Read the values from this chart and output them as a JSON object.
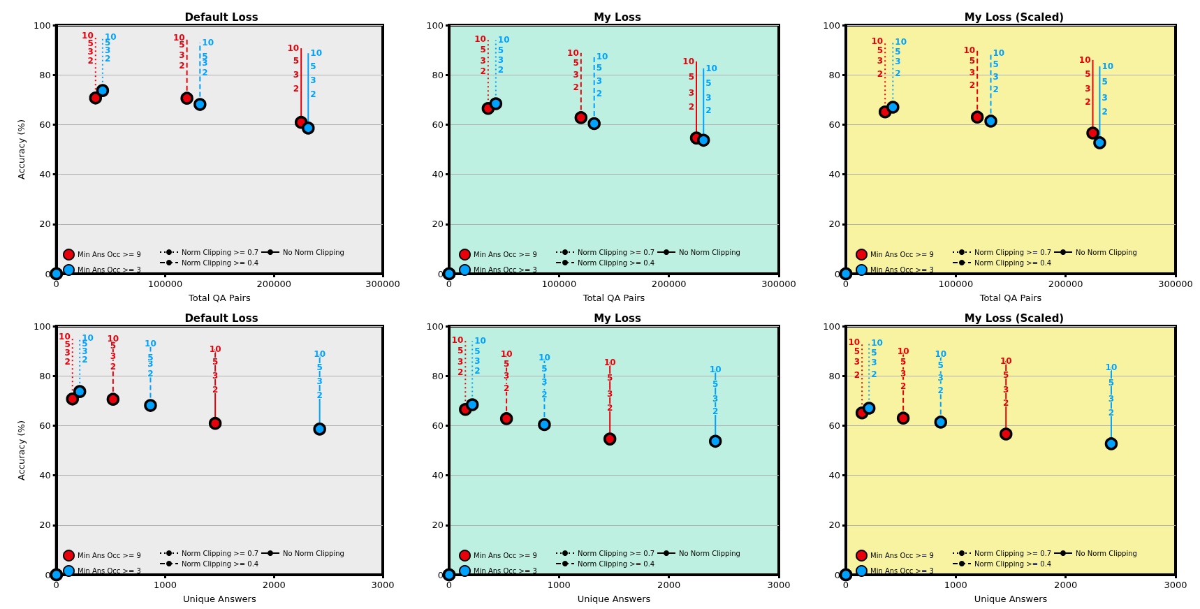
{
  "chart_data": [
    {
      "type": "scatter",
      "title": "Default Loss",
      "xlabel": "Total QA Pairs",
      "ylabel": "Accuracy (%)",
      "xlim": [
        0,
        300000
      ],
      "xticks": [
        0,
        100000,
        200000,
        300000
      ],
      "ylim": [
        0,
        100
      ],
      "yticks": [
        0,
        20,
        40,
        60,
        80,
        100
      ],
      "grid": "y",
      "legend": "bottom",
      "marker": "circle",
      "series": [
        {
          "type": "line",
          "marker": "none",
          "color": "#e8000b",
          "line_style": "dotted",
          "x": [
            36000,
            36000,
            36000,
            36000,
            36000
          ],
          "values": [
            70.7,
            85.6,
            89.3,
            92.6,
            95.8
          ]
        },
        {
          "type": "line",
          "marker": "none",
          "color": "#00a2ff",
          "line_style": "dotted",
          "x": [
            42500,
            42500,
            42500,
            42500,
            42500
          ],
          "values": [
            73.7,
            86.5,
            89.8,
            93,
            95.3
          ]
        },
        {
          "type": "line",
          "marker": "none",
          "color": "#e8000b",
          "line_style": "dashed",
          "x": [
            120000,
            120000,
            120000,
            120000,
            120000
          ],
          "values": [
            70.6,
            83.7,
            87.9,
            92.1,
            94.9
          ]
        },
        {
          "type": "line",
          "marker": "none",
          "color": "#00a2ff",
          "line_style": "dashed",
          "x": [
            132000,
            132000,
            132000,
            132000,
            132000
          ],
          "values": [
            68.1,
            80.9,
            84.7,
            87.4,
            93
          ]
        },
        {
          "type": "line",
          "marker": "none",
          "color": "#e8000b",
          "line_style": "solid",
          "x": [
            225000,
            225000,
            225000,
            225000,
            225000
          ],
          "values": [
            60.9,
            74.4,
            80,
            85.6,
            90.7
          ]
        },
        {
          "type": "line",
          "marker": "none",
          "color": "#00a2ff",
          "line_style": "solid",
          "x": [
            231500,
            231500,
            231500,
            231500,
            231500
          ],
          "values": [
            58.6,
            72.1,
            77.7,
            83.4,
            88.7
          ]
        },
        {
          "name": "Min Ans Occ >= 9",
          "color": "#e8000b",
          "x": [
            0,
            36000,
            120000,
            225000
          ],
          "values": [
            0,
            70.7,
            70.6,
            60.9
          ]
        },
        {
          "name": "Min Ans Occ >= 3",
          "color": "#00a2ff",
          "x": [
            0,
            42500,
            132000,
            231500
          ],
          "values": [
            0,
            73.7,
            68.1,
            58.6
          ]
        },
        {
          "name": "Norm Clipping >= 0.7",
          "type": "line",
          "marker": "none",
          "color": "#000000",
          "line_style": "dotted"
        },
        {
          "name": "Norm Clipping >= 0.4",
          "type": "line",
          "marker": "none",
          "color": "#000000",
          "line_style": "dashed"
        },
        {
          "name": "No Norm Clipping",
          "type": "line",
          "marker": "none",
          "color": "#000000",
          "line_style": "solid"
        }
      ],
      "annotations": [
        {
          "text": "2",
          "x": 36000,
          "y": 85.6
        },
        {
          "text": "3",
          "x": 36000,
          "y": 89.3
        },
        {
          "text": "5",
          "x": 36000,
          "y": 92.6
        },
        {
          "text": "10",
          "x": 36000,
          "y": 95.8
        },
        {
          "text": "2",
          "x": 42500,
          "y": 86.5
        },
        {
          "text": "3",
          "x": 42500,
          "y": 89.8
        },
        {
          "text": "5",
          "x": 42500,
          "y": 93
        },
        {
          "text": "10",
          "x": 42500,
          "y": 95.3
        },
        {
          "text": "2",
          "x": 120000,
          "y": 83.7
        },
        {
          "text": "3",
          "x": 120000,
          "y": 87.9
        },
        {
          "text": "5",
          "x": 120000,
          "y": 92.1
        },
        {
          "text": "10",
          "x": 120000,
          "y": 94.9
        },
        {
          "text": "2",
          "x": 132000,
          "y": 80.9
        },
        {
          "text": "3",
          "x": 132000,
          "y": 84.7
        },
        {
          "text": "5",
          "x": 132000,
          "y": 87.4
        },
        {
          "text": "10",
          "x": 132000,
          "y": 93
        },
        {
          "text": "2",
          "x": 225000,
          "y": 74.4
        },
        {
          "text": "3",
          "x": 225000,
          "y": 80
        },
        {
          "text": "5",
          "x": 225000,
          "y": 85.6
        },
        {
          "text": "10",
          "x": 225000,
          "y": 90.7
        },
        {
          "text": "2",
          "x": 231500,
          "y": 72.1
        },
        {
          "text": "3",
          "x": 231500,
          "y": 77.7
        },
        {
          "text": "5",
          "x": 231500,
          "y": 83.4
        },
        {
          "text": "10",
          "x": 231500,
          "y": 88.7
        }
      ]
    },
    {
      "type": "scatter",
      "title": "My Loss",
      "xlabel": "Total QA Pairs",
      "xlim": [
        0,
        300000
      ],
      "xticks": [
        0,
        100000,
        200000,
        300000
      ],
      "ylim": [
        0,
        100
      ],
      "yticks": [
        0,
        20,
        40,
        60,
        80,
        100
      ],
      "grid": "y",
      "legend": "bottom",
      "marker": "circle",
      "series": [
        {
          "type": "line",
          "marker": "none",
          "color": "#e8000b",
          "line_style": "dotted",
          "x": [
            35500,
            35500,
            35500,
            35500,
            35500
          ],
          "values": [
            66.5,
            81.4,
            85.6,
            90.2,
            94.4
          ]
        },
        {
          "type": "line",
          "marker": "none",
          "color": "#00a2ff",
          "line_style": "dotted",
          "x": [
            42500,
            42500,
            42500,
            42500,
            42500
          ],
          "values": [
            68.4,
            82,
            86,
            89.8,
            94
          ]
        },
        {
          "type": "line",
          "marker": "none",
          "color": "#e8000b",
          "line_style": "dashed",
          "x": [
            120000,
            120000,
            120000,
            120000,
            120000
          ],
          "values": [
            62.8,
            74.9,
            80,
            84.7,
            88.8
          ]
        },
        {
          "type": "line",
          "marker": "none",
          "color": "#00a2ff",
          "line_style": "dashed",
          "x": [
            132000,
            132000,
            132000,
            132000,
            132000
          ],
          "values": [
            60.4,
            72.6,
            77.5,
            82.8,
            87.4
          ]
        },
        {
          "type": "line",
          "marker": "none",
          "color": "#e8000b",
          "line_style": "solid",
          "x": [
            225000,
            225000,
            225000,
            225000,
            225000
          ],
          "values": [
            54.6,
            67,
            72.8,
            79.1,
            85.4
          ]
        },
        {
          "type": "line",
          "marker": "none",
          "color": "#00a2ff",
          "line_style": "solid",
          "x": [
            231500,
            231500,
            231500,
            231500,
            231500
          ],
          "values": [
            53.7,
            65.6,
            70.7,
            76.7,
            82.6
          ]
        },
        {
          "name": "Min Ans Occ >= 9",
          "color": "#e8000b",
          "x": [
            0,
            35500,
            120000,
            225000
          ],
          "values": [
            0,
            66.5,
            62.8,
            54.6
          ]
        },
        {
          "name": "Min Ans Occ >= 3",
          "color": "#00a2ff",
          "x": [
            0,
            42500,
            132000,
            231500
          ],
          "values": [
            0,
            68.4,
            60.4,
            53.7
          ]
        },
        {
          "name": "Norm Clipping >= 0.7",
          "type": "line",
          "marker": "none",
          "color": "#000000",
          "line_style": "dotted"
        },
        {
          "name": "Norm Clipping >= 0.4",
          "type": "line",
          "marker": "none",
          "color": "#000000",
          "line_style": "dashed"
        },
        {
          "name": "No Norm Clipping",
          "type": "line",
          "marker": "none",
          "color": "#000000",
          "line_style": "solid"
        }
      ],
      "annotations": [
        {
          "text": "2",
          "x": 35500,
          "y": 81.4
        },
        {
          "text": "3",
          "x": 35500,
          "y": 85.6
        },
        {
          "text": "5",
          "x": 35500,
          "y": 90.2
        },
        {
          "text": "10",
          "x": 35500,
          "y": 94.4
        },
        {
          "text": "2",
          "x": 42500,
          "y": 82
        },
        {
          "text": "3",
          "x": 42500,
          "y": 86
        },
        {
          "text": "5",
          "x": 42500,
          "y": 89.8
        },
        {
          "text": "10",
          "x": 42500,
          "y": 94
        },
        {
          "text": "2",
          "x": 120000,
          "y": 74.9
        },
        {
          "text": "3",
          "x": 120000,
          "y": 80
        },
        {
          "text": "5",
          "x": 120000,
          "y": 84.7
        },
        {
          "text": "10",
          "x": 120000,
          "y": 88.8
        },
        {
          "text": "2",
          "x": 132000,
          "y": 72.6
        },
        {
          "text": "3",
          "x": 132000,
          "y": 77.5
        },
        {
          "text": "5",
          "x": 132000,
          "y": 82.8
        },
        {
          "text": "10",
          "x": 132000,
          "y": 87.4
        },
        {
          "text": "2",
          "x": 225000,
          "y": 67
        },
        {
          "text": "3",
          "x": 225000,
          "y": 72.8
        },
        {
          "text": "5",
          "x": 225000,
          "y": 79.1
        },
        {
          "text": "10",
          "x": 225000,
          "y": 85.4
        },
        {
          "text": "2",
          "x": 231500,
          "y": 65.6
        },
        {
          "text": "3",
          "x": 231500,
          "y": 70.7
        },
        {
          "text": "5",
          "x": 231500,
          "y": 76.7
        },
        {
          "text": "10",
          "x": 231500,
          "y": 82.6
        }
      ]
    },
    {
      "type": "scatter",
      "title": "My Loss (Scaled)",
      "xlabel": "Total QA Pairs",
      "xlim": [
        0,
        300000
      ],
      "xticks": [
        0,
        100000,
        200000,
        300000
      ],
      "ylim": [
        0,
        100
      ],
      "yticks": [
        0,
        20,
        40,
        60,
        80,
        100
      ],
      "grid": "y",
      "legend": "bottom",
      "marker": "circle",
      "series": [
        {
          "type": "line",
          "marker": "none",
          "color": "#e8000b",
          "line_style": "dotted",
          "x": [
            35700,
            35700,
            35700,
            35700,
            35700
          ],
          "values": [
            65.1,
            80.3,
            85.6,
            89.8,
            93.5
          ]
        },
        {
          "type": "line",
          "marker": "none",
          "color": "#00a2ff",
          "line_style": "dotted",
          "x": [
            42800,
            42800,
            42800,
            42800,
            42800
          ],
          "values": [
            67,
            80.7,
            85.4,
            89.3,
            93.3
          ]
        },
        {
          "type": "line",
          "marker": "none",
          "color": "#e8000b",
          "line_style": "dashed",
          "x": [
            119600,
            119600,
            119600,
            119600,
            119600
          ],
          "values": [
            63,
            75.8,
            80.9,
            85.6,
            89.8
          ]
        },
        {
          "type": "line",
          "marker": "none",
          "color": "#00a2ff",
          "line_style": "dashed",
          "x": [
            131900,
            131900,
            131900,
            131900,
            131900
          ],
          "values": [
            61.4,
            74.1,
            79.1,
            84.2,
            88.7
          ]
        },
        {
          "type": "line",
          "marker": "none",
          "color": "#e8000b",
          "line_style": "solid",
          "x": [
            224700,
            224700,
            224700,
            224700,
            224700
          ],
          "values": [
            56.6,
            69.1,
            74.4,
            80.3,
            86
          ]
        },
        {
          "type": "line",
          "marker": "none",
          "color": "#00a2ff",
          "line_style": "solid",
          "x": [
            231000,
            231000,
            231000,
            231000,
            231000
          ],
          "values": [
            52.7,
            65.1,
            70.7,
            77.2,
            83.4
          ]
        },
        {
          "name": "Min Ans Occ >= 9",
          "color": "#e8000b",
          "x": [
            0,
            35700,
            119600,
            224700
          ],
          "values": [
            0,
            65.1,
            63,
            56.6
          ]
        },
        {
          "name": "Min Ans Occ >= 3",
          "color": "#00a2ff",
          "x": [
            0,
            42800,
            131900,
            231000
          ],
          "values": [
            0,
            67,
            61.4,
            52.7
          ]
        },
        {
          "name": "Norm Clipping >= 0.7",
          "type": "line",
          "marker": "none",
          "color": "#000000",
          "line_style": "dotted"
        },
        {
          "name": "Norm Clipping >= 0.4",
          "type": "line",
          "marker": "none",
          "color": "#000000",
          "line_style": "dashed"
        },
        {
          "name": "No Norm Clipping",
          "type": "line",
          "marker": "none",
          "color": "#000000",
          "line_style": "solid"
        }
      ],
      "annotations": [
        {
          "text": "2",
          "x": 35700,
          "y": 80.3
        },
        {
          "text": "3",
          "x": 35700,
          "y": 85.6
        },
        {
          "text": "5",
          "x": 35700,
          "y": 89.8
        },
        {
          "text": "10",
          "x": 35700,
          "y": 93.5
        },
        {
          "text": "2",
          "x": 42800,
          "y": 80.7
        },
        {
          "text": "3",
          "x": 42800,
          "y": 85.4
        },
        {
          "text": "5",
          "x": 42800,
          "y": 89.3
        },
        {
          "text": "10",
          "x": 42800,
          "y": 93.3
        },
        {
          "text": "2",
          "x": 119600,
          "y": 75.8
        },
        {
          "text": "3",
          "x": 119600,
          "y": 80.9
        },
        {
          "text": "5",
          "x": 119600,
          "y": 85.6
        },
        {
          "text": "10",
          "x": 119600,
          "y": 89.8
        },
        {
          "text": "2",
          "x": 131900,
          "y": 74.1
        },
        {
          "text": "3",
          "x": 131900,
          "y": 79.1
        },
        {
          "text": "5",
          "x": 131900,
          "y": 84.2
        },
        {
          "text": "10",
          "x": 131900,
          "y": 88.7
        },
        {
          "text": "2",
          "x": 224700,
          "y": 69.1
        },
        {
          "text": "3",
          "x": 224700,
          "y": 74.4
        },
        {
          "text": "5",
          "x": 224700,
          "y": 80.3
        },
        {
          "text": "10",
          "x": 224700,
          "y": 86
        },
        {
          "text": "2",
          "x": 231000,
          "y": 65.1
        },
        {
          "text": "3",
          "x": 231000,
          "y": 70.7
        },
        {
          "text": "5",
          "x": 231000,
          "y": 77.2
        },
        {
          "text": "10",
          "x": 231000,
          "y": 83.4
        }
      ]
    },
    {
      "type": "scatter",
      "title": "Default Loss",
      "xlabel": "Unique Answers",
      "ylabel": "Accuracy (%)",
      "xlim": [
        0,
        3000
      ],
      "xticks": [
        0,
        1000,
        2000,
        3000
      ],
      "ylim": [
        0,
        100
      ],
      "yticks": [
        0,
        20,
        40,
        60,
        80,
        100
      ],
      "grid": "y",
      "legend": "bottom",
      "marker": "circle",
      "series": [
        {
          "type": "line",
          "marker": "none",
          "color": "#e8000b",
          "line_style": "dotted",
          "x": [
            148,
            148,
            148,
            148,
            148
          ],
          "values": [
            70.7,
            85.6,
            89.3,
            92.6,
            95.8
          ]
        },
        {
          "type": "line",
          "marker": "none",
          "color": "#00a2ff",
          "line_style": "dotted",
          "x": [
            215,
            215,
            215,
            215,
            215
          ],
          "values": [
            73.7,
            86.5,
            89.8,
            93,
            95.3
          ]
        },
        {
          "type": "line",
          "marker": "none",
          "color": "#e8000b",
          "line_style": "dashed",
          "x": [
            521,
            521,
            521,
            521,
            521
          ],
          "values": [
            70.6,
            83.7,
            87.9,
            92.1,
            94.9
          ]
        },
        {
          "type": "line",
          "marker": "none",
          "color": "#00a2ff",
          "line_style": "dashed",
          "x": [
            865,
            865,
            865,
            865,
            865
          ],
          "values": [
            68.1,
            80.9,
            84.7,
            87.4,
            93
          ]
        },
        {
          "type": "line",
          "marker": "none",
          "color": "#e8000b",
          "line_style": "solid",
          "x": [
            1460,
            1460,
            1460,
            1460,
            1460
          ],
          "values": [
            60.9,
            74.4,
            80,
            85.6,
            90.7
          ]
        },
        {
          "type": "line",
          "marker": "none",
          "color": "#00a2ff",
          "line_style": "solid",
          "x": [
            2420,
            2420,
            2420,
            2420,
            2420
          ],
          "values": [
            58.6,
            72.1,
            77.7,
            83.4,
            88.7
          ]
        },
        {
          "name": "Min Ans Occ >= 9",
          "color": "#e8000b",
          "x": [
            0,
            148,
            521,
            1460
          ],
          "values": [
            0,
            70.7,
            70.6,
            60.9
          ]
        },
        {
          "name": "Min Ans Occ >= 3",
          "color": "#00a2ff",
          "x": [
            0,
            215,
            865,
            2420
          ],
          "values": [
            0,
            73.7,
            68.1,
            58.6
          ]
        },
        {
          "name": "Norm Clipping >= 0.7",
          "type": "line",
          "marker": "none",
          "color": "#000000",
          "line_style": "dotted"
        },
        {
          "name": "Norm Clipping >= 0.4",
          "type": "line",
          "marker": "none",
          "color": "#000000",
          "line_style": "dashed"
        },
        {
          "name": "No Norm Clipping",
          "type": "line",
          "marker": "none",
          "color": "#000000",
          "line_style": "solid"
        }
      ],
      "annotations": [
        {
          "text": "2",
          "x": 148,
          "y": 85.6
        },
        {
          "text": "3",
          "x": 148,
          "y": 89.3
        },
        {
          "text": "5",
          "x": 148,
          "y": 92.6
        },
        {
          "text": "10",
          "x": 148,
          "y": 95.8
        },
        {
          "text": "2",
          "x": 215,
          "y": 86.5
        },
        {
          "text": "3",
          "x": 215,
          "y": 89.8
        },
        {
          "text": "5",
          "x": 215,
          "y": 93
        },
        {
          "text": "10",
          "x": 215,
          "y": 95.3
        },
        {
          "text": "2",
          "x": 521,
          "y": 83.7
        },
        {
          "text": "3",
          "x": 521,
          "y": 87.9
        },
        {
          "text": "5",
          "x": 521,
          "y": 92.1
        },
        {
          "text": "10",
          "x": 521,
          "y": 94.9
        },
        {
          "text": "2",
          "x": 865,
          "y": 80.9
        },
        {
          "text": "3",
          "x": 865,
          "y": 84.7
        },
        {
          "text": "5",
          "x": 865,
          "y": 87.4
        },
        {
          "text": "10",
          "x": 865,
          "y": 93
        },
        {
          "text": "2",
          "x": 1460,
          "y": 74.4
        },
        {
          "text": "3",
          "x": 1460,
          "y": 80
        },
        {
          "text": "5",
          "x": 1460,
          "y": 85.6
        },
        {
          "text": "10",
          "x": 1460,
          "y": 90.7
        },
        {
          "text": "2",
          "x": 2420,
          "y": 72.1
        },
        {
          "text": "3",
          "x": 2420,
          "y": 77.7
        },
        {
          "text": "5",
          "x": 2420,
          "y": 83.4
        },
        {
          "text": "10",
          "x": 2420,
          "y": 88.7
        }
      ]
    },
    {
      "type": "scatter",
      "title": "My Loss",
      "xlabel": "Unique Answers",
      "xlim": [
        0,
        3000
      ],
      "xticks": [
        0,
        1000,
        2000,
        3000
      ],
      "ylim": [
        0,
        100
      ],
      "yticks": [
        0,
        20,
        40,
        60,
        80,
        100
      ],
      "grid": "y",
      "legend": "bottom",
      "marker": "circle",
      "series": [
        {
          "type": "line",
          "marker": "none",
          "color": "#e8000b",
          "line_style": "dotted",
          "x": [
            148,
            148,
            148,
            148,
            148
          ],
          "values": [
            66.5,
            81.4,
            85.6,
            90.2,
            94.4
          ]
        },
        {
          "type": "line",
          "marker": "none",
          "color": "#00a2ff",
          "line_style": "dotted",
          "x": [
            211,
            211,
            211,
            211,
            211
          ],
          "values": [
            68.4,
            82,
            86,
            89.8,
            94
          ]
        },
        {
          "type": "line",
          "marker": "none",
          "color": "#e8000b",
          "line_style": "dashed",
          "x": [
            522,
            522,
            522,
            522,
            522
          ],
          "values": [
            62.8,
            74.9,
            80,
            84.7,
            88.8
          ]
        },
        {
          "type": "line",
          "marker": "none",
          "color": "#00a2ff",
          "line_style": "dashed",
          "x": [
            867,
            867,
            867,
            867,
            867
          ],
          "values": [
            60.4,
            72.6,
            77.5,
            82.8,
            87.4
          ]
        },
        {
          "type": "line",
          "marker": "none",
          "color": "#e8000b",
          "line_style": "solid",
          "x": [
            1463,
            1463,
            1463,
            1463,
            1463
          ],
          "values": [
            54.6,
            67,
            72.8,
            79.1,
            85.4
          ]
        },
        {
          "type": "line",
          "marker": "none",
          "color": "#00a2ff",
          "line_style": "solid",
          "x": [
            2423,
            2423,
            2423,
            2423,
            2423
          ],
          "values": [
            53.7,
            65.6,
            70.7,
            76.7,
            82.6
          ]
        },
        {
          "name": "Min Ans Occ >= 9",
          "color": "#e8000b",
          "x": [
            0,
            148,
            522,
            1463
          ],
          "values": [
            0,
            66.5,
            62.8,
            54.6
          ]
        },
        {
          "name": "Min Ans Occ >= 3",
          "color": "#00a2ff",
          "x": [
            0,
            211,
            867,
            2423
          ],
          "values": [
            0,
            68.4,
            60.4,
            53.7
          ]
        },
        {
          "name": "Norm Clipping >= 0.7",
          "type": "line",
          "marker": "none",
          "color": "#000000",
          "line_style": "dotted"
        },
        {
          "name": "Norm Clipping >= 0.4",
          "type": "line",
          "marker": "none",
          "color": "#000000",
          "line_style": "dashed"
        },
        {
          "name": "No Norm Clipping",
          "type": "line",
          "marker": "none",
          "color": "#000000",
          "line_style": "solid"
        }
      ],
      "annotations": [
        {
          "text": "2",
          "x": 148,
          "y": 81.4
        },
        {
          "text": "3",
          "x": 148,
          "y": 85.6
        },
        {
          "text": "5",
          "x": 148,
          "y": 90.2
        },
        {
          "text": "10",
          "x": 148,
          "y": 94.4
        },
        {
          "text": "2",
          "x": 211,
          "y": 82
        },
        {
          "text": "3",
          "x": 211,
          "y": 86
        },
        {
          "text": "5",
          "x": 211,
          "y": 89.8
        },
        {
          "text": "10",
          "x": 211,
          "y": 94
        },
        {
          "text": "2",
          "x": 522,
          "y": 74.9
        },
        {
          "text": "3",
          "x": 522,
          "y": 80
        },
        {
          "text": "5",
          "x": 522,
          "y": 84.7
        },
        {
          "text": "10",
          "x": 522,
          "y": 88.8
        },
        {
          "text": "2",
          "x": 867,
          "y": 72.6
        },
        {
          "text": "3",
          "x": 867,
          "y": 77.5
        },
        {
          "text": "5",
          "x": 867,
          "y": 82.8
        },
        {
          "text": "10",
          "x": 867,
          "y": 87.4
        },
        {
          "text": "2",
          "x": 1463,
          "y": 67
        },
        {
          "text": "3",
          "x": 1463,
          "y": 72.8
        },
        {
          "text": "5",
          "x": 1463,
          "y": 79.1
        },
        {
          "text": "10",
          "x": 1463,
          "y": 85.4
        },
        {
          "text": "2",
          "x": 2423,
          "y": 65.6
        },
        {
          "text": "3",
          "x": 2423,
          "y": 70.7
        },
        {
          "text": "5",
          "x": 2423,
          "y": 76.7
        },
        {
          "text": "10",
          "x": 2423,
          "y": 82.6
        }
      ]
    },
    {
      "type": "scatter",
      "title": "My Loss (Scaled)",
      "xlabel": "Unique Answers",
      "xlim": [
        0,
        3000
      ],
      "xticks": [
        0,
        1000,
        2000,
        3000
      ],
      "ylim": [
        0,
        100
      ],
      "yticks": [
        0,
        20,
        40,
        60,
        80,
        100
      ],
      "grid": "y",
      "legend": "bottom",
      "marker": "circle",
      "series": [
        {
          "type": "line",
          "marker": "none",
          "color": "#e8000b",
          "line_style": "dotted",
          "x": [
            147,
            147,
            147,
            147,
            147
          ],
          "values": [
            65.1,
            80.3,
            85.6,
            89.8,
            93.5
          ]
        },
        {
          "type": "line",
          "marker": "none",
          "color": "#00a2ff",
          "line_style": "dotted",
          "x": [
            211,
            211,
            211,
            211,
            211
          ],
          "values": [
            67,
            80.7,
            85.4,
            89.3,
            93.3
          ]
        },
        {
          "type": "line",
          "marker": "none",
          "color": "#e8000b",
          "line_style": "dashed",
          "x": [
            522,
            522,
            522,
            522,
            522
          ],
          "values": [
            63,
            75.8,
            80.9,
            85.6,
            89.8
          ]
        },
        {
          "type": "line",
          "marker": "none",
          "color": "#00a2ff",
          "line_style": "dashed",
          "x": [
            863,
            863,
            863,
            863,
            863
          ],
          "values": [
            61.4,
            74.1,
            79.1,
            84.2,
            88.7
          ]
        },
        {
          "type": "line",
          "marker": "none",
          "color": "#e8000b",
          "line_style": "solid",
          "x": [
            1457,
            1457,
            1457,
            1457,
            1457
          ],
          "values": [
            56.6,
            69.1,
            74.4,
            80.3,
            86
          ]
        },
        {
          "type": "line",
          "marker": "none",
          "color": "#00a2ff",
          "line_style": "solid",
          "x": [
            2415,
            2415,
            2415,
            2415,
            2415
          ],
          "values": [
            52.7,
            65.1,
            70.7,
            77.2,
            83.4
          ]
        },
        {
          "name": "Min Ans Occ >= 9",
          "color": "#e8000b",
          "x": [
            0,
            147,
            522,
            1457
          ],
          "values": [
            0,
            65.1,
            63,
            56.6
          ]
        },
        {
          "name": "Min Ans Occ >= 3",
          "color": "#00a2ff",
          "x": [
            0,
            211,
            863,
            2415
          ],
          "values": [
            0,
            67,
            61.4,
            52.7
          ]
        },
        {
          "name": "Norm Clipping >= 0.7",
          "type": "line",
          "marker": "none",
          "color": "#000000",
          "line_style": "dotted"
        },
        {
          "name": "Norm Clipping >= 0.4",
          "type": "line",
          "marker": "none",
          "color": "#000000",
          "line_style": "dashed"
        },
        {
          "name": "No Norm Clipping",
          "type": "line",
          "marker": "none",
          "color": "#000000",
          "line_style": "solid"
        }
      ],
      "annotations": [
        {
          "text": "2",
          "x": 147,
          "y": 80.3
        },
        {
          "text": "3",
          "x": 147,
          "y": 85.6
        },
        {
          "text": "5",
          "x": 147,
          "y": 89.8
        },
        {
          "text": "10",
          "x": 147,
          "y": 93.5
        },
        {
          "text": "2",
          "x": 211,
          "y": 80.7
        },
        {
          "text": "3",
          "x": 211,
          "y": 85.4
        },
        {
          "text": "5",
          "x": 211,
          "y": 89.3
        },
        {
          "text": "10",
          "x": 211,
          "y": 93.3
        },
        {
          "text": "2",
          "x": 522,
          "y": 75.8
        },
        {
          "text": "3",
          "x": 522,
          "y": 80.9
        },
        {
          "text": "5",
          "x": 522,
          "y": 85.6
        },
        {
          "text": "10",
          "x": 522,
          "y": 89.8
        },
        {
          "text": "2",
          "x": 863,
          "y": 74.1
        },
        {
          "text": "3",
          "x": 863,
          "y": 79.1
        },
        {
          "text": "5",
          "x": 863,
          "y": 84.2
        },
        {
          "text": "10",
          "x": 863,
          "y": 88.7
        },
        {
          "text": "2",
          "x": 1457,
          "y": 69.1
        },
        {
          "text": "3",
          "x": 1457,
          "y": 74.4
        },
        {
          "text": "5",
          "x": 1457,
          "y": 80.3
        },
        {
          "text": "10",
          "x": 1457,
          "y": 86
        },
        {
          "text": "2",
          "x": 2415,
          "y": 65.1
        },
        {
          "text": "3",
          "x": 2415,
          "y": 70.7
        },
        {
          "text": "5",
          "x": 2415,
          "y": 77.2
        },
        {
          "text": "10",
          "x": 2415,
          "y": 83.4
        }
      ]
    }
  ]
}
